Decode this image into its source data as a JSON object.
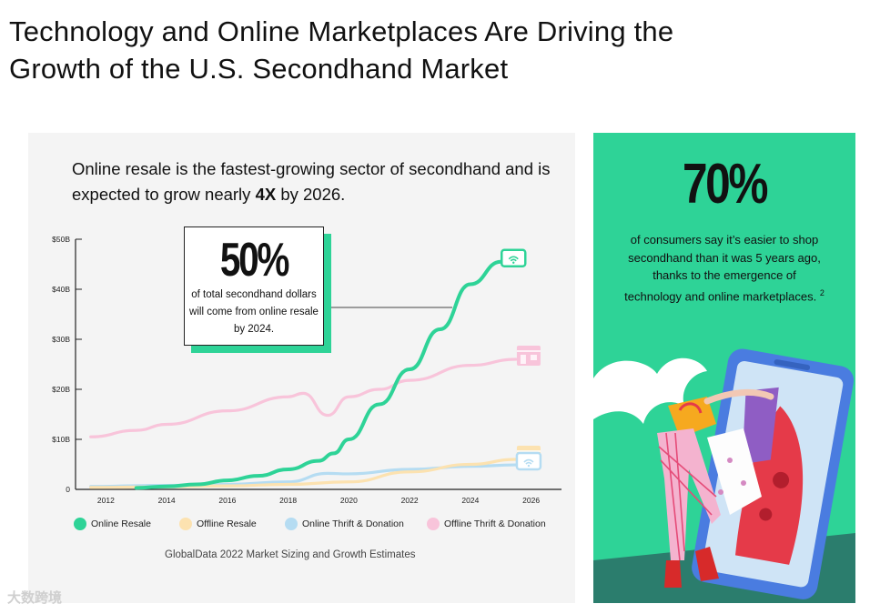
{
  "page": {
    "title": "Technology and Online Marketplaces Are Driving the Growth of the U.S. Secondhand Market"
  },
  "left_card": {
    "headline_pre": "Online resale is the fastest-growing sector of secondhand and is expected to grow nearly ",
    "headline_bold": "4X",
    "headline_post": " by 2026.",
    "callout": {
      "big": "50%",
      "text": "of total secondhand dollars will come from online resale by 2024."
    },
    "source": "GlobalData 2022 Market Sizing and Growth Estimates"
  },
  "right_card": {
    "big": "70%",
    "text": "of consumers say it’s easier to shop secondhand than it was 5 years ago, thanks to the emergence of technology and online marketplaces.",
    "footnote": "2"
  },
  "watermark": "大数跨境",
  "chart_data": {
    "type": "line",
    "title": "",
    "xlabel": "",
    "ylabel": "",
    "x_ticks": [
      "2012",
      "2014",
      "2016",
      "2018",
      "2020",
      "2022",
      "2024",
      "2026"
    ],
    "y_ticks": [
      "0",
      "$10B",
      "$20B",
      "$30B",
      "$40B",
      "$50B"
    ],
    "xlim": [
      2011,
      2027
    ],
    "ylim": [
      0,
      50
    ],
    "grid": false,
    "legend_position": "bottom",
    "series": [
      {
        "name": "Online Resale",
        "color": "#2ed397",
        "points": [
          [
            2013,
            0.3
          ],
          [
            2014,
            0.6
          ],
          [
            2015,
            1.0
          ],
          [
            2016,
            1.8
          ],
          [
            2017,
            2.7
          ],
          [
            2018,
            4.0
          ],
          [
            2019,
            5.7
          ],
          [
            2019.5,
            7.2
          ],
          [
            2020,
            10.0
          ],
          [
            2021,
            17.0
          ],
          [
            2022,
            24.0
          ],
          [
            2023,
            32.0
          ],
          [
            2024,
            41.0
          ],
          [
            2025,
            45.5
          ]
        ]
      },
      {
        "name": "Offline Resale",
        "color": "#fce2b0",
        "points": [
          [
            2011.5,
            0.4
          ],
          [
            2014,
            0.5
          ],
          [
            2016,
            0.7
          ],
          [
            2018,
            1.0
          ],
          [
            2020,
            1.5
          ],
          [
            2022,
            3.5
          ],
          [
            2024,
            5.0
          ],
          [
            2025.5,
            6.0
          ]
        ]
      },
      {
        "name": "Online Thrift & Donation",
        "color": "#b5dcf2",
        "points": [
          [
            2011.5,
            0.6
          ],
          [
            2014,
            0.8
          ],
          [
            2016,
            1.0
          ],
          [
            2018,
            1.5
          ],
          [
            2019.3,
            3.2
          ],
          [
            2020,
            3.1
          ],
          [
            2022,
            4.0
          ],
          [
            2024,
            4.6
          ],
          [
            2025.5,
            4.9
          ]
        ]
      },
      {
        "name": "Offline Thrift & Donation",
        "color": "#f8c4da",
        "points": [
          [
            2011.5,
            10.5
          ],
          [
            2013,
            11.8
          ],
          [
            2014,
            13.0
          ],
          [
            2016,
            15.7
          ],
          [
            2018,
            18.5
          ],
          [
            2018.5,
            19.2
          ],
          [
            2019.3,
            14.8
          ],
          [
            2020,
            18.5
          ],
          [
            2021,
            20.0
          ],
          [
            2022,
            21.8
          ],
          [
            2024,
            24.8
          ],
          [
            2025.5,
            26.0
          ]
        ]
      }
    ]
  }
}
